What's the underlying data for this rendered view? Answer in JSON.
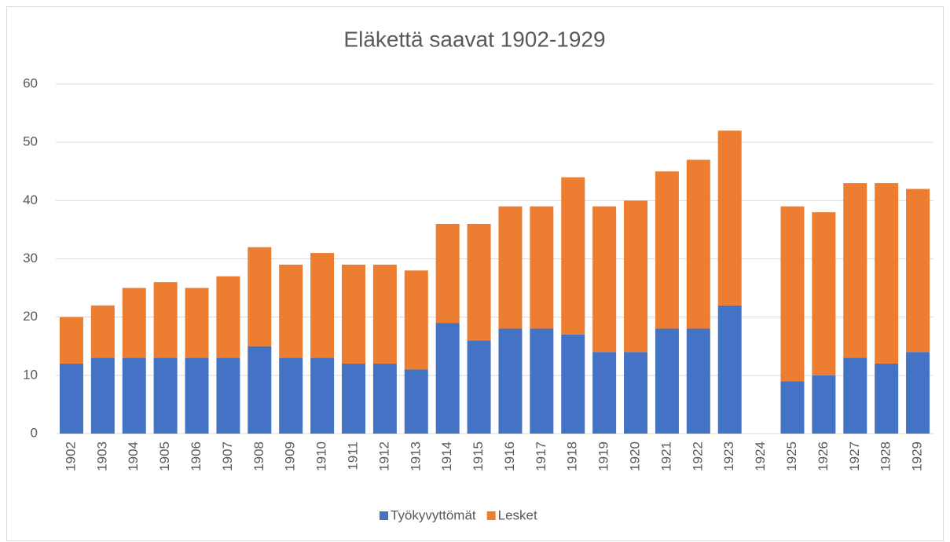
{
  "chart_data": {
    "type": "stacked_bar",
    "title": "Eläkettä saavat 1902-1929",
    "categories": [
      "1902",
      "1903",
      "1904",
      "1905",
      "1906",
      "1907",
      "1908",
      "1909",
      "1910",
      "1911",
      "1912",
      "1913",
      "1914",
      "1915",
      "1916",
      "1917",
      "1918",
      "1919",
      "1920",
      "1921",
      "1922",
      "1923",
      "1924",
      "1925",
      "1926",
      "1927",
      "1928",
      "1929"
    ],
    "series": [
      {
        "name": "Työkyvyttömät",
        "color": "#4472c4",
        "values": [
          12,
          13,
          13,
          13,
          13,
          13,
          15,
          13,
          13,
          12,
          12,
          11,
          19,
          16,
          18,
          18,
          17,
          14,
          14,
          18,
          18,
          22,
          null,
          9,
          10,
          13,
          12,
          14
        ]
      },
      {
        "name": "Lesket",
        "color": "#ed7d31",
        "values": [
          8,
          9,
          12,
          13,
          12,
          14,
          17,
          16,
          18,
          17,
          17,
          17,
          17,
          20,
          21,
          21,
          27,
          25,
          26,
          27,
          29,
          30,
          null,
          30,
          28,
          30,
          31,
          28
        ]
      }
    ],
    "ylim": [
      0,
      60
    ],
    "yticks": [
      0,
      10,
      20,
      30,
      40,
      50,
      60
    ],
    "grid": true,
    "legend": "bottom"
  }
}
